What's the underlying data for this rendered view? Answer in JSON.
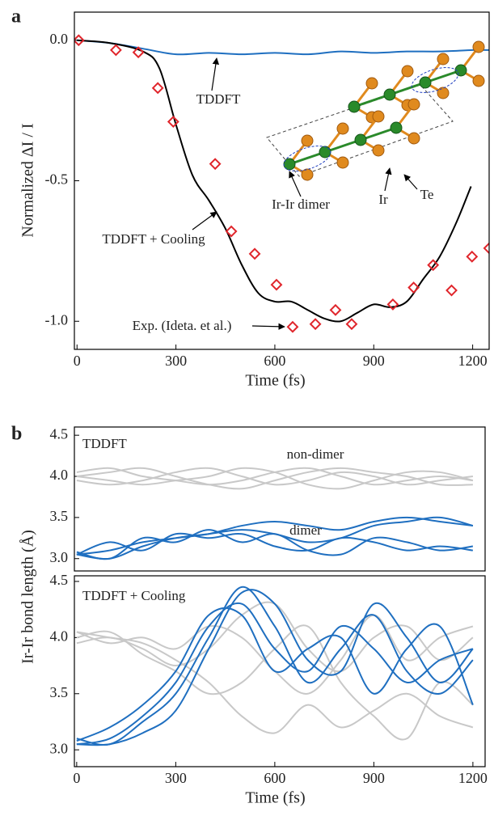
{
  "chart_data": [
    {
      "type": "line",
      "panel_label": "a",
      "xlabel": "Time (fs)",
      "ylabel": "Normalized ΔI / I",
      "xlim": [
        -8,
        1250
      ],
      "ylim": [
        -1.1,
        0.1
      ],
      "xticks": [
        0,
        300,
        600,
        900,
        1200
      ],
      "yticks": [
        {
          "value": -1,
          "label": "-1.0"
        },
        {
          "value": -0.5,
          "label": "-0.5"
        },
        {
          "value": 0,
          "label": "0.0"
        }
      ],
      "series": [
        {
          "color": "#1f6fc0",
          "x": [
            0,
            100,
            200,
            300,
            400,
            500,
            600,
            700,
            800,
            900,
            1000,
            1100,
            1200,
            1250
          ],
          "values": [
            0,
            -0.01,
            -0.03,
            -0.05,
            -0.045,
            -0.05,
            -0.045,
            -0.05,
            -0.04,
            -0.045,
            -0.04,
            -0.04,
            -0.035,
            -0.035
          ]
        },
        {
          "color": "#000000",
          "x": [
            0,
            100,
            200,
            250,
            300,
            350,
            400,
            450,
            500,
            550,
            600,
            650,
            700,
            750,
            800,
            850,
            900,
            950,
            1000,
            1050,
            1100,
            1150,
            1195
          ],
          "values": [
            0,
            -0.01,
            -0.04,
            -0.1,
            -0.3,
            -0.48,
            -0.57,
            -0.67,
            -0.8,
            -0.9,
            -0.93,
            -0.93,
            -0.96,
            -0.99,
            -1.0,
            -0.97,
            -0.94,
            -0.95,
            -0.93,
            -0.85,
            -0.77,
            -0.65,
            -0.52
          ]
        },
        {
          "type": "scatter",
          "color": "#e0252b",
          "x": [
            5,
            118,
            186,
            245,
            292,
            419,
            468,
            539,
            605,
            654,
            723,
            784,
            833,
            958,
            1021,
            1080,
            1136,
            1198,
            1250
          ],
          "values": [
            0,
            -0.035,
            -0.043,
            -0.17,
            -0.29,
            -0.44,
            -0.68,
            -0.76,
            -0.87,
            -1.02,
            -1.01,
            -0.96,
            -1.01,
            -0.94,
            -0.88,
            -0.8,
            -0.89,
            -0.77,
            -0.74
          ]
        }
      ],
      "annotations": [
        "TDDFT",
        "TDDFT + Cooling",
        "Exp. (Ideta. et al.)",
        "Ir-Ir dimer",
        "Ir",
        "Te"
      ]
    },
    {
      "type": "line",
      "panel_label": "b",
      "ylabel": "Ir-Ir bond length (Å)",
      "xlim": [
        -7,
        1237
      ],
      "ylim": [
        2.85,
        4.6
      ],
      "x": [
        0,
        100,
        200,
        300,
        400,
        500,
        600,
        700,
        800,
        900,
        1000,
        1100,
        1200
      ],
      "yticks": [
        {
          "value": 3,
          "label": "3.0"
        },
        3.5,
        {
          "value": 4,
          "label": "4.0"
        },
        4.5
      ],
      "series": [
        {
          "color": "#c8c8c8",
          "values": [
            4.05,
            4.1,
            4.0,
            3.95,
            3.9,
            3.95,
            4.05,
            4.1,
            4.0,
            3.9,
            3.95,
            4.0,
            3.95
          ]
        },
        {
          "color": "#c8c8c8",
          "values": [
            3.95,
            3.9,
            3.95,
            4.05,
            4.1,
            4.0,
            3.9,
            3.95,
            4.05,
            4.0,
            3.9,
            3.95,
            4.0
          ]
        },
        {
          "color": "#c8c8c8",
          "values": [
            4.0,
            4.05,
            4.1,
            4.0,
            3.9,
            3.85,
            3.95,
            4.05,
            4.1,
            4.05,
            4.0,
            3.9,
            3.9
          ]
        },
        {
          "color": "#c8c8c8",
          "values": [
            4.0,
            3.95,
            3.9,
            3.95,
            4.0,
            4.1,
            4.05,
            3.9,
            3.85,
            3.95,
            4.05,
            4.05,
            3.95
          ]
        },
        {
          "color": "#1f6fc0",
          "values": [
            3.05,
            3.1,
            3.2,
            3.25,
            3.3,
            3.4,
            3.45,
            3.4,
            3.35,
            3.45,
            3.5,
            3.45,
            3.4
          ]
        },
        {
          "color": "#1f6fc0",
          "values": [
            3.05,
            3.0,
            3.15,
            3.25,
            3.3,
            3.35,
            3.3,
            3.2,
            3.25,
            3.4,
            3.45,
            3.5,
            3.4
          ]
        },
        {
          "color": "#1f6fc0",
          "values": [
            3.05,
            3.2,
            3.1,
            3.3,
            3.25,
            3.3,
            3.15,
            3.1,
            3.25,
            3.2,
            3.1,
            3.15,
            3.1
          ]
        },
        {
          "color": "#1f6fc0",
          "values": [
            3.08,
            3.0,
            3.25,
            3.2,
            3.35,
            3.2,
            3.3,
            3.1,
            3.05,
            3.25,
            3.2,
            3.1,
            3.15
          ]
        }
      ],
      "annotations": [
        "TDDFT",
        "non-dimer",
        "dimer"
      ]
    },
    {
      "type": "line",
      "xlabel": "Time (fs)",
      "xlim": [
        -7,
        1237
      ],
      "ylim": [
        2.85,
        4.55
      ],
      "x": [
        0,
        100,
        200,
        300,
        400,
        500,
        600,
        700,
        800,
        900,
        1000,
        1100,
        1200
      ],
      "xticks": [
        0,
        300,
        600,
        900,
        1200
      ],
      "yticks": [
        {
          "value": 3,
          "label": "3.0"
        },
        3.5,
        {
          "value": 4,
          "label": "4.0"
        },
        4.5
      ],
      "series": [
        {
          "color": "#c8c8c8",
          "values": [
            4.05,
            4.0,
            3.95,
            3.8,
            3.6,
            3.3,
            3.15,
            3.4,
            3.2,
            3.35,
            3.5,
            3.3,
            3.2
          ]
        },
        {
          "color": "#c8c8c8",
          "values": [
            3.95,
            4.0,
            3.9,
            3.75,
            3.9,
            4.2,
            4.3,
            3.9,
            3.7,
            4.0,
            4.1,
            3.8,
            4.0
          ]
        },
        {
          "color": "#c8c8c8",
          "values": [
            4.0,
            4.05,
            3.85,
            3.7,
            3.5,
            3.6,
            3.9,
            4.1,
            3.6,
            3.3,
            3.1,
            3.6,
            3.4
          ]
        },
        {
          "color": "#c8c8c8",
          "values": [
            4.05,
            3.95,
            4.0,
            3.9,
            4.1,
            4.0,
            3.7,
            3.5,
            3.8,
            4.2,
            3.8,
            4.0,
            4.1
          ]
        },
        {
          "color": "#1f6fc0",
          "values": [
            3.05,
            3.05,
            3.15,
            3.35,
            3.9,
            4.4,
            4.3,
            3.8,
            3.7,
            4.3,
            4.0,
            3.6,
            3.9
          ]
        },
        {
          "color": "#1f6fc0",
          "values": [
            3.1,
            3.05,
            3.25,
            3.5,
            4.0,
            4.45,
            4.1,
            3.6,
            3.9,
            4.2,
            3.7,
            3.5,
            3.8
          ]
        },
        {
          "color": "#1f6fc0",
          "values": [
            3.05,
            3.1,
            3.3,
            3.6,
            4.1,
            4.3,
            3.9,
            3.7,
            4.1,
            3.9,
            3.6,
            3.8,
            3.9
          ]
        },
        {
          "color": "#1f6fc0",
          "values": [
            3.08,
            3.2,
            3.4,
            3.7,
            4.2,
            4.2,
            3.7,
            3.9,
            4.0,
            3.5,
            3.9,
            4.1,
            3.4
          ]
        }
      ],
      "annotations": [
        "TDDFT + Cooling"
      ]
    }
  ]
}
